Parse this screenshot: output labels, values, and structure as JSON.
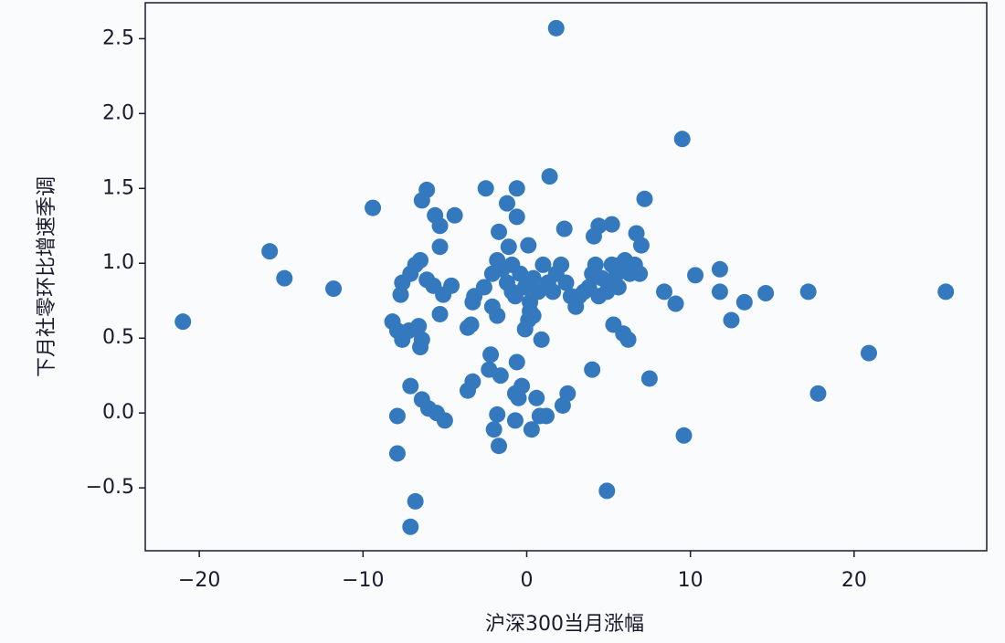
{
  "chart_data": {
    "type": "scatter",
    "xlabel": "沪深300当月涨幅",
    "ylabel": "下月社零环比增速季调",
    "color": "#3479be",
    "xlim": [
      -23.3,
      28.1
    ],
    "ylim": [
      -0.92,
      2.74
    ],
    "xticks": [
      {
        "value": -20,
        "label": "−20"
      },
      {
        "value": -10,
        "label": "−10"
      },
      0,
      10,
      20
    ],
    "yticks": [
      {
        "value": -0.5,
        "label": "−0.5"
      },
      {
        "value": 0,
        "label": "0.0"
      },
      0.5,
      {
        "value": 1,
        "label": "1.0"
      },
      1.5,
      {
        "value": 2,
        "label": "2.0"
      },
      2.5
    ],
    "x": [
      -21.0,
      -15.7,
      -14.8,
      -11.8,
      -9.4,
      1.8,
      9.5,
      1.4,
      7.2,
      25.6,
      20.9,
      17.8,
      17.2,
      14.6,
      13.3,
      12.5,
      11.8,
      11.8,
      10.3,
      9.1,
      8.4,
      7.5,
      9.6,
      4.9,
      -6.8,
      -7.1,
      -7.9,
      -7.9,
      -7.1,
      -6.4,
      -6.0,
      -5.5,
      -5.0,
      -8.2,
      -7.9,
      -7.6,
      -7.2,
      -6.6,
      -6.4,
      -6.5,
      -7.6,
      -7.7,
      -7.1,
      -6.8,
      -6.5,
      -6.1,
      -5.7,
      -5.1,
      -4.6,
      -6.4,
      -6.1,
      -5.6,
      -5.3,
      -5.3,
      -4.4,
      -5.3,
      -3.6,
      -3.4,
      -3.6,
      -3.3,
      -3.3,
      -2.5,
      -1.7,
      -1.2,
      -0.6,
      -0.6,
      -1.1,
      0.1,
      -2.2,
      -2.3,
      -1.8,
      -2.0,
      -1.7,
      -1.6,
      -0.6,
      -0.7,
      -0.5,
      -0.3,
      -0.7,
      0.3,
      0.6,
      0.8,
      1.2,
      2.2,
      2.5,
      0.9,
      4.0,
      5.3,
      5.9,
      6.2,
      -3.2,
      -2.6,
      -2.1,
      -1.8,
      -1.5,
      -1.2,
      -0.9,
      -2.1,
      -1.8,
      -0.4,
      -0.1,
      0.2,
      0.4,
      0.7,
      1.0,
      1.3,
      1.6,
      1.8,
      2.1,
      2.4,
      2.7,
      3.0,
      0.1,
      -0.1,
      0.4,
      0.2,
      -0.9,
      -0.7,
      2.3,
      3.5,
      4.0,
      4.2,
      4.4,
      4.1,
      5.2,
      4.6,
      4.9,
      5.2,
      5.5,
      5.7,
      6.0,
      6.3,
      6.6,
      6.9,
      6.7,
      7.0,
      4.4,
      3.8,
      3.2,
      5.1,
      5.6,
      6.2
    ],
    "y": [
      0.61,
      1.08,
      0.9,
      0.83,
      1.37,
      2.57,
      1.83,
      1.58,
      1.43,
      0.81,
      0.4,
      0.13,
      0.81,
      0.8,
      0.74,
      0.62,
      0.96,
      0.81,
      0.92,
      0.73,
      0.81,
      0.23,
      -0.15,
      -0.52,
      -0.59,
      -0.76,
      -0.27,
      -0.02,
      0.18,
      0.09,
      0.03,
      0.0,
      -0.05,
      0.61,
      0.55,
      0.49,
      0.55,
      0.58,
      0.49,
      0.44,
      0.87,
      0.79,
      0.93,
      0.99,
      1.02,
      0.89,
      0.85,
      0.79,
      0.85,
      1.42,
      1.49,
      1.32,
      1.25,
      1.11,
      1.32,
      0.66,
      0.57,
      0.59,
      0.15,
      0.21,
      0.74,
      1.5,
      1.21,
      1.4,
      1.5,
      1.31,
      1.11,
      1.12,
      0.39,
      0.29,
      -0.01,
      -0.11,
      -0.22,
      0.25,
      0.34,
      0.13,
      0.1,
      0.18,
      -0.05,
      -0.11,
      0.1,
      -0.02,
      -0.02,
      0.05,
      0.13,
      0.49,
      0.29,
      0.59,
      0.53,
      0.49,
      0.78,
      0.84,
      0.93,
      1.02,
      0.96,
      0.87,
      0.81,
      0.71,
      0.65,
      0.93,
      0.84,
      0.74,
      0.9,
      0.81,
      0.99,
      0.87,
      0.81,
      0.93,
      0.99,
      0.87,
      0.78,
      0.71,
      0.62,
      0.56,
      0.65,
      0.68,
      0.99,
      0.78,
      1.23,
      0.81,
      0.93,
      0.99,
      1.25,
      1.18,
      1.26,
      0.9,
      0.81,
      0.99,
      0.93,
      0.99,
      1.02,
      0.93,
      0.99,
      0.93,
      1.2,
      1.12,
      0.78,
      0.84,
      0.78,
      0.87,
      0.84,
      0.96
    ]
  }
}
